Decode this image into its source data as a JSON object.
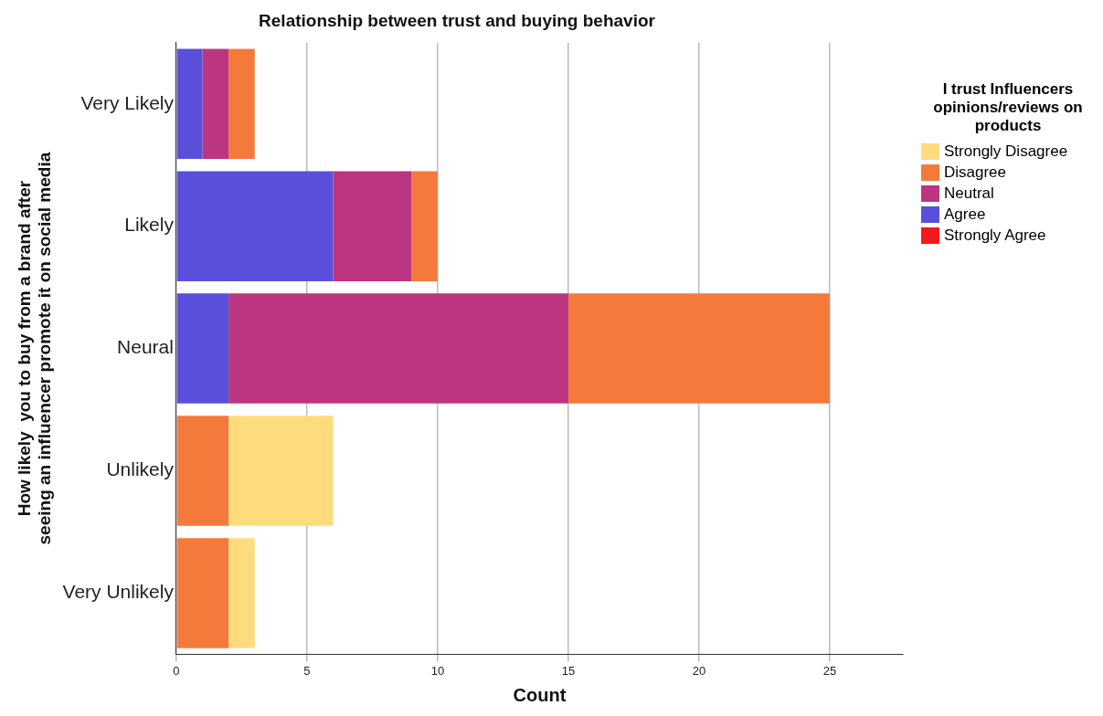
{
  "chart_data": {
    "type": "bar",
    "orientation": "horizontal",
    "stacked": true,
    "title": "Relationship between trust and buying behavior",
    "xlabel": "Count",
    "ylabel": "How likely  you to buy from a brand after seeing an influencer promote it on social media",
    "legend_title": "I trust Influencers opinions/reviews on products",
    "legend": "right",
    "grid": "x",
    "categories": [
      "Very Likely",
      "Likely",
      "Neural",
      "Unlikely",
      "Very Unlikely"
    ],
    "xlim": [
      0,
      27.8
    ],
    "xticks": [
      0,
      5,
      10,
      15,
      20,
      25
    ],
    "series": [
      {
        "name": "Strongly Agree",
        "color": "#f5191c",
        "values": [
          null,
          null,
          null,
          null,
          null
        ]
      },
      {
        "name": "Agree",
        "color": "#5a4fdb",
        "values": [
          1,
          6,
          2,
          null,
          null
        ]
      },
      {
        "name": "Neutral",
        "color": "#bc3580",
        "values": [
          1,
          3,
          13,
          null,
          null
        ]
      },
      {
        "name": "Disagree",
        "color": "#f47a3c",
        "values": [
          1,
          1,
          10,
          2,
          2
        ]
      },
      {
        "name": "Strongly Disagree",
        "color": "#fedc7e",
        "values": [
          null,
          null,
          null,
          4,
          1
        ]
      }
    ]
  }
}
